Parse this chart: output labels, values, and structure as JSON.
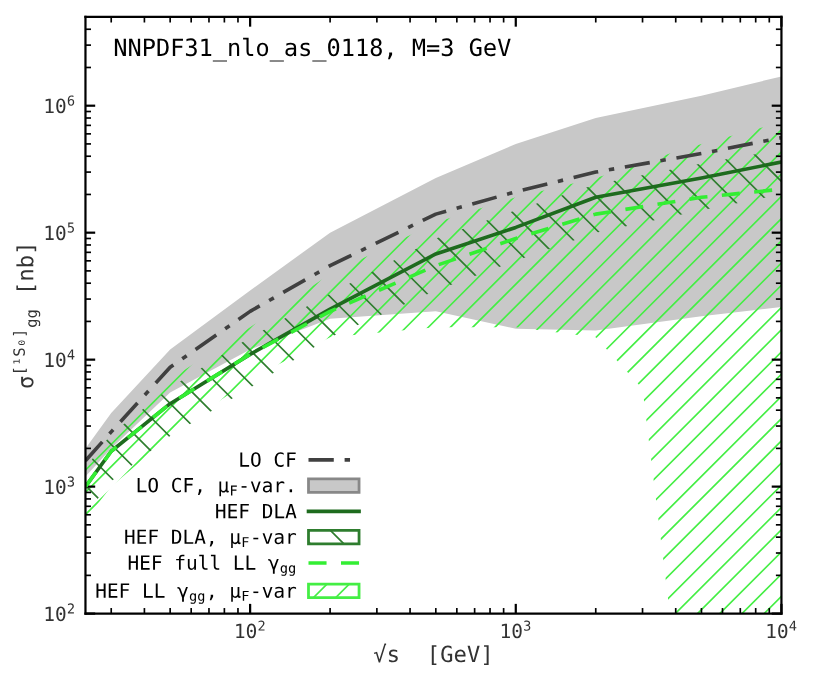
{
  "chart_data": {
    "type": "line",
    "title": "NNPDF31_nlo_as_0118, M=3 GeV",
    "xlabel": "√s  [GeV]",
    "ylabel": "σ$^{[¹S₀]}$$_{gg}$ [nb]",
    "log": "xy",
    "xlim": [
      24,
      10000
    ],
    "ylim": [
      100,
      5000000
    ],
    "xticks": [
      {
        "value": 100,
        "label": "10$^{2}$"
      },
      {
        "value": 1000,
        "label": "10$^{3}$"
      },
      {
        "value": 10000,
        "label": "10$^{4}$"
      }
    ],
    "yticks": [
      {
        "value": 100,
        "label": "10$^{2}$"
      },
      {
        "value": 1000,
        "label": "10$^{3}$"
      },
      {
        "value": 10000,
        "label": "10$^{4}$"
      },
      {
        "value": 100000,
        "label": "10$^{5}$"
      },
      {
        "value": 1000000,
        "label": "10$^{6}$"
      }
    ],
    "grid": false,
    "legend": "bottom left",
    "series": [
      {
        "name": "LO CF, μ$_{F}$-var.",
        "type": "area",
        "color": "#c8c8c8",
        "x": [
          24,
          30,
          50,
          100,
          200,
          500,
          1000,
          2000,
          5000,
          10000
        ],
        "values": [
          null,
          null,
          null,
          null,
          null,
          null,
          null,
          null,
          null,
          null
        ],
        "lower": [
          1200,
          2000,
          5500,
          12000,
          21000,
          24000,
          17500,
          17000,
          22000,
          26000
        ],
        "upper": [
          2000,
          3800,
          12000,
          35000,
          100000,
          270000,
          500000,
          800000,
          1200000,
          1700000
        ]
      },
      {
        "name": "HEF LL γ$_{gg}$, μ$_{F}$-var",
        "type": "area",
        "color": "#44ee44",
        "x": [
          24,
          30,
          50,
          100,
          200,
          500,
          1000,
          2000,
          3000,
          3800,
          5000,
          10000
        ],
        "values": [
          null,
          null,
          null,
          null,
          null,
          null,
          null,
          null,
          null,
          null,
          null,
          null
        ],
        "lower": [
          550,
          1000,
          2500,
          7000,
          15000,
          18000,
          18000,
          15000,
          5900,
          100,
          100,
          100
        ],
        "upper": [
          1500,
          2800,
          7000,
          18000,
          47000,
          120000,
          190000,
          270000,
          350000,
          420000,
          500000,
          740000
        ]
      },
      {
        "name": "HEF DLA, μ$_{F}$-var",
        "type": "area",
        "color": "#2e7d2e",
        "x": [
          24,
          30,
          50,
          100,
          200,
          500,
          1000,
          2000,
          5000,
          10000
        ],
        "values": [
          null,
          null,
          null,
          null,
          null,
          null,
          null,
          null,
          null,
          null
        ],
        "lower": [
          600,
          1100,
          2500,
          6000,
          15000,
          35000,
          60000,
          100000,
          150000,
          200000
        ],
        "upper": [
          1400,
          2600,
          6000,
          15000,
          33000,
          90000,
          150000,
          240000,
          350000,
          450000
        ]
      },
      {
        "name": "LO CF",
        "line_style": "dashdot",
        "color": "#404040",
        "x": [
          24,
          30,
          50,
          100,
          200,
          500,
          1000,
          2000,
          5000,
          10000
        ],
        "values": [
          1600,
          2700,
          8700,
          24000,
          55000,
          140000,
          210000,
          300000,
          420000,
          560000
        ]
      },
      {
        "name": "HEF DLA",
        "line_style": "solid",
        "color": "#1e6b1e",
        "x": [
          24,
          30,
          50,
          100,
          200,
          500,
          1000,
          2000,
          5000,
          10000
        ],
        "values": [
          1000,
          1900,
          4500,
          11000,
          25000,
          68000,
          110000,
          190000,
          270000,
          360000
        ]
      },
      {
        "name": "HEF full LL γ$_{gg}$",
        "line_style": "dashed",
        "color": "#33ee33",
        "x": [
          24,
          30,
          50,
          100,
          200,
          500,
          1000,
          2000,
          5000,
          10000
        ],
        "values": [
          1000,
          1900,
          4500,
          11000,
          24000,
          55000,
          90000,
          140000,
          190000,
          220000
        ]
      }
    ]
  }
}
